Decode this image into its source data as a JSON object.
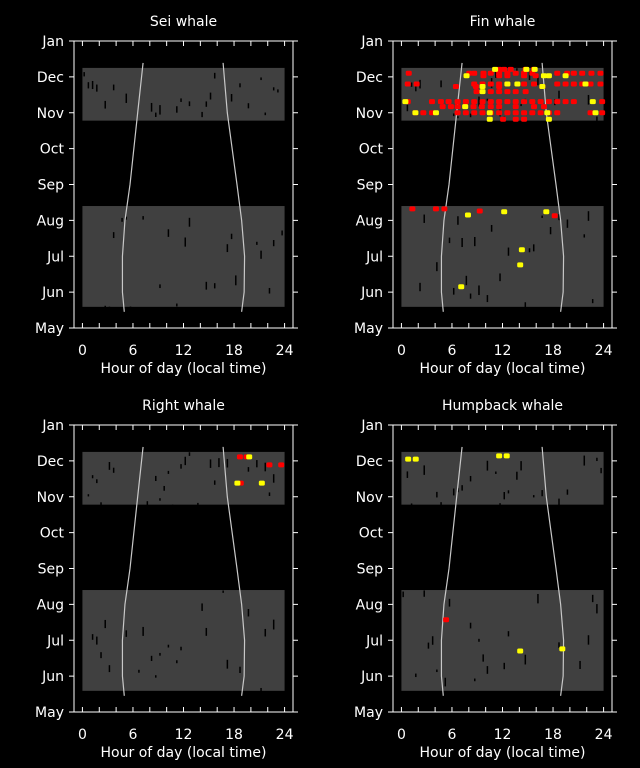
{
  "chart_data": [
    {
      "type": "scatter",
      "title": "Sei whale",
      "xlabel": "Hour of day (local time)",
      "red": [],
      "yellow": []
    },
    {
      "type": "scatter",
      "title": "Fin whale",
      "xlabel": "Hour of day (local time)",
      "red": [
        [
          11.6,
          7.21
        ],
        [
          12.19,
          7.21
        ],
        [
          12.98,
          7.21
        ],
        [
          14.75,
          7.21
        ],
        [
          15.74,
          7.21
        ],
        [
          0.87,
          7.1
        ],
        [
          8.05,
          7.1
        ],
        [
          8.64,
          7.1
        ],
        [
          9.74,
          7.1
        ],
        [
          10.61,
          7.1
        ],
        [
          11.6,
          7.1
        ],
        [
          12.58,
          7.1
        ],
        [
          13.57,
          7.1
        ],
        [
          14.56,
          7.1
        ],
        [
          15.54,
          7.1
        ],
        [
          18.5,
          7.1
        ],
        [
          19.68,
          7.1
        ],
        [
          20.47,
          7.1
        ],
        [
          21.46,
          7.1
        ],
        [
          22.56,
          7.1
        ],
        [
          23.63,
          7.1
        ],
        [
          9.74,
          7.03
        ],
        [
          11.6,
          7.03
        ],
        [
          12.58,
          7.03
        ],
        [
          14.56,
          7.03
        ],
        [
          15.94,
          7.03
        ],
        [
          0.75,
          6.8
        ],
        [
          1.81,
          6.8
        ],
        [
          8.64,
          6.8
        ],
        [
          9.63,
          6.8
        ],
        [
          10.61,
          6.8
        ],
        [
          11.6,
          6.8
        ],
        [
          12.58,
          6.8
        ],
        [
          14.56,
          6.8
        ],
        [
          15.74,
          6.8
        ],
        [
          18.5,
          6.8
        ],
        [
          19.49,
          6.8
        ],
        [
          20.47,
          6.8
        ],
        [
          21.46,
          6.8
        ],
        [
          22.45,
          6.8
        ],
        [
          23.63,
          6.8
        ],
        [
          6.47,
          6.73
        ],
        [
          8.84,
          6.73
        ],
        [
          11.6,
          6.73
        ],
        [
          16.73,
          6.73
        ],
        [
          8.92,
          6.59
        ],
        [
          10.61,
          6.59
        ],
        [
          11.6,
          6.59
        ],
        [
          12.58,
          6.59
        ],
        [
          13.57,
          6.59
        ],
        [
          14.75,
          6.59
        ],
        [
          0.75,
          6.31
        ],
        [
          3.63,
          6.31
        ],
        [
          4.69,
          6.31
        ],
        [
          5.6,
          6.31
        ],
        [
          6.67,
          6.31
        ],
        [
          7.65,
          6.31
        ],
        [
          8.64,
          6.31
        ],
        [
          9.63,
          6.31
        ],
        [
          10.61,
          6.31
        ],
        [
          11.6,
          6.31
        ],
        [
          12.58,
          6.31
        ],
        [
          13.57,
          6.31
        ],
        [
          14.56,
          6.31
        ],
        [
          15.54,
          6.31
        ],
        [
          16.53,
          6.31
        ],
        [
          17.51,
          6.31
        ],
        [
          18.5,
          6.31
        ],
        [
          19.49,
          6.31
        ],
        [
          20.47,
          6.31
        ],
        [
          23.83,
          6.31
        ],
        [
          4.89,
          6.17
        ],
        [
          5.88,
          6.17
        ],
        [
          6.67,
          6.17
        ],
        [
          7.57,
          6.17
        ],
        [
          8.56,
          6.17
        ],
        [
          9.55,
          6.17
        ],
        [
          10.61,
          6.17
        ],
        [
          11.6,
          6.17
        ],
        [
          13.57,
          6.17
        ],
        [
          15.74,
          6.17
        ],
        [
          16.92,
          6.17
        ],
        [
          1.66,
          6.0
        ],
        [
          2.6,
          6.0
        ],
        [
          3.63,
          6.0
        ],
        [
          6.67,
          6.0
        ],
        [
          7.65,
          6.0
        ],
        [
          8.64,
          6.0
        ],
        [
          9.63,
          6.0
        ],
        [
          10.61,
          6.0
        ],
        [
          11.6,
          6.0
        ],
        [
          12.58,
          6.0
        ],
        [
          13.57,
          6.0
        ],
        [
          14.56,
          6.0
        ],
        [
          15.54,
          6.0
        ],
        [
          16.53,
          6.0
        ],
        [
          17.51,
          6.0
        ],
        [
          18.5,
          6.0
        ],
        [
          22.45,
          6.0
        ],
        [
          23.83,
          6.0
        ],
        [
          12.07,
          5.82
        ],
        [
          13.57,
          5.82
        ],
        [
          14.56,
          5.82
        ],
        [
          1.3,
          3.32
        ],
        [
          4.1,
          3.32
        ],
        [
          5.1,
          3.32
        ],
        [
          9.3,
          3.26
        ],
        [
          18.2,
          3.13
        ]
      ],
      "yellow": [
        [
          11.12,
          7.21
        ],
        [
          14.83,
          7.21
        ],
        [
          15.82,
          7.21
        ],
        [
          7.73,
          7.03
        ],
        [
          16.92,
          7.03
        ],
        [
          17.51,
          7.03
        ],
        [
          19.49,
          7.03
        ],
        [
          12.58,
          6.8
        ],
        [
          13.77,
          6.8
        ],
        [
          21.85,
          6.8
        ],
        [
          9.63,
          6.73
        ],
        [
          16.73,
          6.73
        ],
        [
          9.63,
          6.59
        ],
        [
          0.47,
          6.31
        ],
        [
          22.72,
          6.31
        ],
        [
          7.57,
          6.17
        ],
        [
          1.66,
          6.0
        ],
        [
          4.1,
          6.0
        ],
        [
          10.49,
          6.0
        ],
        [
          17.32,
          6.0
        ],
        [
          23.04,
          6.0
        ],
        [
          10.49,
          5.82
        ],
        [
          17.51,
          5.82
        ],
        [
          7.9,
          3.15
        ],
        [
          12.2,
          3.24
        ],
        [
          17.2,
          3.24
        ],
        [
          14.3,
          2.18
        ],
        [
          14.1,
          1.76
        ],
        [
          7.1,
          1.15
        ]
      ]
    },
    {
      "type": "scatter",
      "title": "Right whale",
      "xlabel": "Hour of day (local time)",
      "red": [
        [
          18.7,
          7.11
        ],
        [
          19.5,
          7.11
        ],
        [
          22.2,
          6.89
        ],
        [
          23.6,
          6.89
        ],
        [
          18.8,
          6.38
        ]
      ],
      "yellow": [
        [
          19.8,
          7.11
        ],
        [
          18.4,
          6.38
        ],
        [
          21.3,
          6.38
        ]
      ]
    },
    {
      "type": "scatter",
      "title": "Humpback whale",
      "xlabel": "Hour of day (local time)",
      "red": [
        [
          5.3,
          2.57
        ]
      ],
      "yellow": [
        [
          0.8,
          7.05
        ],
        [
          1.7,
          7.05
        ],
        [
          11.6,
          7.14
        ],
        [
          12.5,
          7.14
        ],
        [
          14.1,
          1.7
        ],
        [
          19.1,
          1.76
        ]
      ]
    }
  ],
  "shared_axes": {
    "x_ticks": [
      "0",
      "6",
      "12",
      "18",
      "24"
    ],
    "x_tick_values": [
      0,
      6,
      12,
      18,
      24
    ],
    "xlim": [
      -1,
      25
    ],
    "y_ticks": [
      "May",
      "Jun",
      "Jul",
      "Aug",
      "Sep",
      "Oct",
      "Nov",
      "Dec",
      "Jan"
    ],
    "y_tick_note_values": [
      0,
      1,
      2,
      3,
      4,
      5,
      6,
      7,
      8
    ],
    "ylim": [
      0,
      8
    ],
    "effort_month_ranges": [
      [
        5.78,
        7.25
      ],
      [
        0.59,
        3.4
      ]
    ],
    "sunrise": [
      [
        7.2,
        7.39
      ],
      [
        6.56,
        6.0
      ],
      [
        5.65,
        4.0
      ],
      [
        5.05,
        3.0
      ],
      [
        4.75,
        2.0
      ],
      [
        4.75,
        1.0
      ],
      [
        4.97,
        0.45
      ]
    ],
    "sunset": [
      [
        16.7,
        7.39
      ],
      [
        17.2,
        6.0
      ],
      [
        18.35,
        4.0
      ],
      [
        18.9,
        3.0
      ],
      [
        19.25,
        2.0
      ],
      [
        19.2,
        1.0
      ],
      [
        18.9,
        0.45
      ]
    ]
  },
  "colors": {
    "effort": "#404040",
    "red": "#ff0000",
    "yellow": "#ffff00",
    "sun": "#c8c8c8",
    "axis": "#ffffff"
  }
}
